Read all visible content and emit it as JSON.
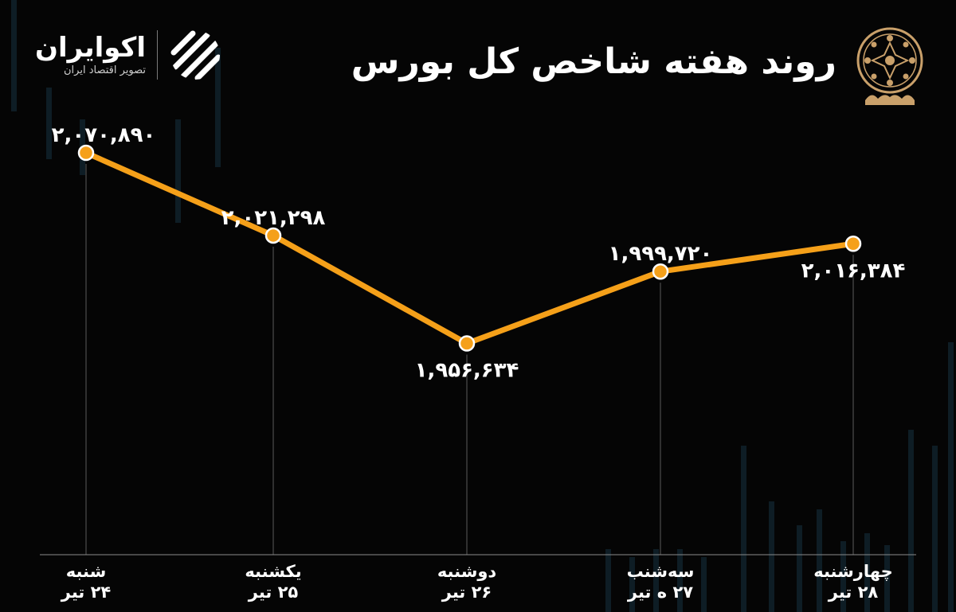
{
  "header": {
    "title": "روند هفته شاخص کل بورس",
    "brand_name": "اکوایران",
    "brand_tagline": "تصویر اقتصاد ایران",
    "brand_icon": "stripes-logo-icon",
    "emblem_icon": "stock-exchange-emblem-icon"
  },
  "colors": {
    "background": "#050505",
    "line": "#f5a019",
    "marker": "#f5a01a",
    "text": "#ffffff",
    "guide": "#5a5a5a",
    "decor_bars": "#16323f",
    "emblem": "#c9a06a"
  },
  "chart_data": {
    "type": "line",
    "title": "روند هفته شاخص کل بورس",
    "categories": [
      [
        "شنبه",
        "۲۴ تیر"
      ],
      [
        "یکشنبه",
        "۲۵ تیر"
      ],
      [
        "دوشنبه",
        "۲۶ تیر"
      ],
      [
        "سه‌شنب",
        "۲۷ ه تیر"
      ],
      [
        "چهارشنبه",
        "۲۸ تیر"
      ]
    ],
    "values": [
      2070890,
      2021298,
      1956634,
      1999720,
      2016384
    ],
    "value_labels": [
      "۲,۰۷۰,۸۹۰",
      "۲,۰۲۱,۲۹۸",
      "۱,۹۵۶,۶۳۴",
      "۱,۹۹۹,۷۲۰",
      "۲,۰۱۶,۳۸۴"
    ],
    "label_positions": [
      "above",
      "above",
      "below",
      "above",
      "below"
    ],
    "ylim": [
      1830000,
      2110000
    ],
    "grid": false,
    "legend": "none"
  }
}
